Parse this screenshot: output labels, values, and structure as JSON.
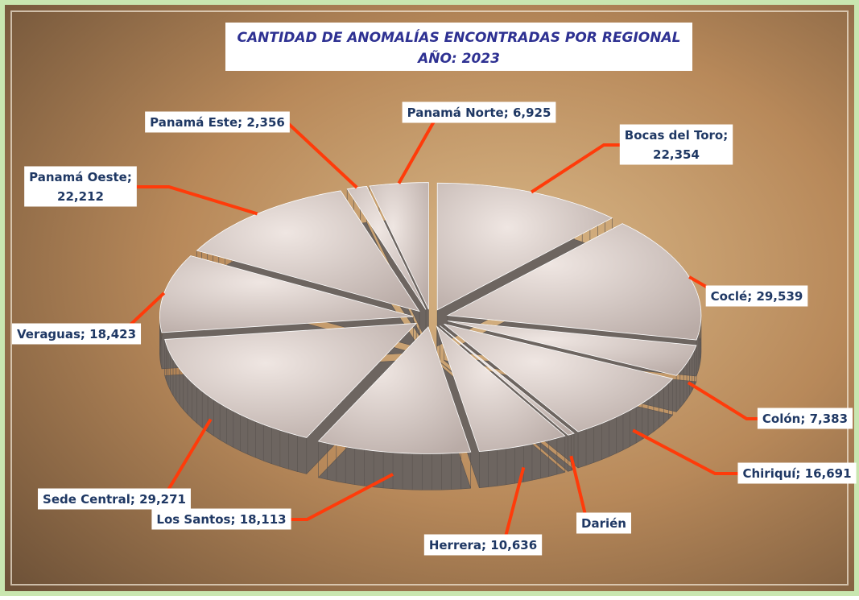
{
  "chart_data": {
    "type": "pie3d",
    "title": "CANTIDAD DE ANOMALÍAS ENCONTRADAS POR REGIONAL",
    "subtitle": "AÑO: 2023",
    "categories": [
      "Bocas del Toro",
      "Coclé",
      "Colón",
      "Chiriquí",
      "Darién",
      "Herrera",
      "Los Santos",
      "Sede Central",
      "Veraguas",
      "Panamá Oeste",
      "Panamá Este",
      "Panamá Norte"
    ],
    "values": [
      22354,
      29539,
      7383,
      16691,
      800,
      10636,
      18113,
      29271,
      18423,
      22212,
      2356,
      6925
    ],
    "value_labels": [
      "22,354",
      "29,539",
      "7,383",
      "16,691",
      null,
      "10,636",
      "18,113",
      "29,271",
      "18,423",
      "22,212",
      "2,356",
      "6,925"
    ],
    "color": "#d9ccc6"
  }
}
